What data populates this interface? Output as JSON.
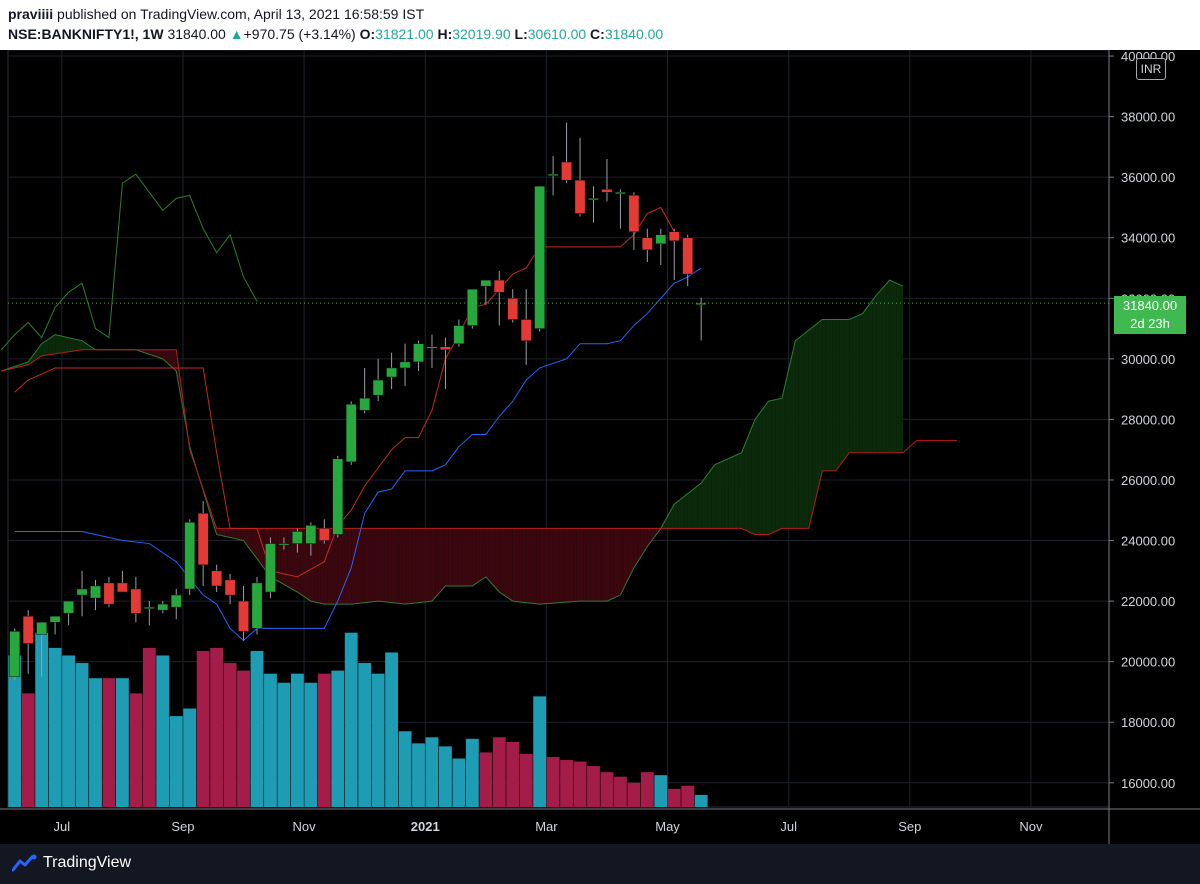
{
  "header": {
    "author": "praviiii",
    "published": "published on TradingView.com, April 13, 2021 16:58:59 IST",
    "symbol": "NSE:BANKNIFTY1!, 1W",
    "last": "31840.00",
    "change_arrow": "▲",
    "change": "+970.75 (+3.14%)",
    "o_label": "O:",
    "o": "31821.00",
    "h_label": "H:",
    "h": "32019.90",
    "l_label": "L:",
    "l": "30610.00",
    "c_label": "C:",
    "c": "31840.00"
  },
  "currency_badge": "INR",
  "last_price_tag": {
    "price": "31840.00",
    "countdown": "2d 23h"
  },
  "footer": {
    "brand": "TradingView",
    "logo_icon": "tradingview-logo-icon"
  },
  "colors": {
    "bull_candle": "#26a83d",
    "bear_candle": "#e53935",
    "bull_volume": "#1e9cb4",
    "bear_volume": "#a31d48",
    "tenkan": "#2962ff",
    "kijun": "#c62828",
    "chikou": "#2e7d32",
    "cloud_bull": "#0b2a0b",
    "cloud_bear": "#3a070f"
  },
  "chart_data": {
    "type": "candlestick",
    "interval": "1W",
    "y_axis": {
      "ticks": [
        "16000.00",
        "18000.00",
        "20000.00",
        "22000.00",
        "24000.00",
        "26000.00",
        "28000.00",
        "30000.00",
        "32000.00",
        "34000.00",
        "36000.00",
        "38000.00",
        "40000.00"
      ],
      "range": [
        15200,
        40200
      ]
    },
    "x_axis": {
      "labels": [
        {
          "t": "Jul",
          "i": 3.5
        },
        {
          "t": "Sep",
          "i": 12.5
        },
        {
          "t": "Nov",
          "i": 21.5
        },
        {
          "t": "2021",
          "i": 30.5
        },
        {
          "t": "Mar",
          "i": 39.5
        },
        {
          "t": "May",
          "i": 48.5
        },
        {
          "t": "Jul",
          "i": 57.5
        },
        {
          "t": "Sep",
          "i": 66.5
        },
        {
          "t": "Nov",
          "i": 75.5
        }
      ],
      "range": [
        -0.5,
        81.3
      ]
    },
    "candles": [
      [
        19500,
        21100,
        19400,
        21000
      ],
      [
        21500,
        21700,
        19600,
        20600
      ],
      [
        20900,
        21300,
        19500,
        21300
      ],
      [
        21300,
        21500,
        20900,
        21500
      ],
      [
        21600,
        22000,
        21200,
        22000
      ],
      [
        22200,
        23000,
        21500,
        22400
      ],
      [
        22100,
        22700,
        21700,
        22500
      ],
      [
        22600,
        22800,
        21800,
        21900
      ],
      [
        22600,
        23000,
        22300,
        22300
      ],
      [
        22400,
        22800,
        21300,
        21600
      ],
      [
        21800,
        22000,
        21200,
        21800
      ],
      [
        21700,
        22000,
        21600,
        21900
      ],
      [
        21800,
        22400,
        21400,
        22200
      ],
      [
        22400,
        24700,
        22200,
        24600
      ],
      [
        24900,
        25300,
        22500,
        23200
      ],
      [
        23000,
        23200,
        22300,
        22500
      ],
      [
        22700,
        22900,
        21900,
        22200
      ],
      [
        22000,
        22500,
        20700,
        21000
      ],
      [
        21100,
        22800,
        20900,
        22600
      ],
      [
        22300,
        24100,
        22100,
        23900
      ],
      [
        23900,
        24100,
        23700,
        23900
      ],
      [
        23900,
        24400,
        23600,
        24300
      ],
      [
        23900,
        24600,
        23500,
        24500
      ],
      [
        24400,
        24700,
        23900,
        24000
      ],
      [
        24200,
        26800,
        24100,
        26700
      ],
      [
        26600,
        28600,
        26500,
        28500
      ],
      [
        28300,
        29700,
        28200,
        28700
      ],
      [
        28800,
        30000,
        28600,
        29300
      ],
      [
        29400,
        30200,
        29000,
        29700
      ],
      [
        29700,
        30500,
        29100,
        29900
      ],
      [
        29900,
        30600,
        29600,
        30500
      ],
      [
        30400,
        30800,
        29700,
        30400
      ],
      [
        30400,
        30700,
        29000,
        30300
      ],
      [
        30500,
        31300,
        30400,
        31100
      ],
      [
        31100,
        32300,
        31000,
        32300
      ],
      [
        32400,
        32600,
        31800,
        32600
      ],
      [
        32600,
        32900,
        31100,
        32200
      ],
      [
        32000,
        32300,
        31200,
        31300
      ],
      [
        31300,
        32300,
        29800,
        30600
      ],
      [
        31000,
        35700,
        30900,
        35700
      ],
      [
        36100,
        36700,
        35400,
        36100
      ],
      [
        36500,
        37800,
        35800,
        35900
      ],
      [
        35900,
        37300,
        34700,
        34800
      ],
      [
        35300,
        35700,
        34500,
        35300
      ],
      [
        35600,
        36600,
        35200,
        35500
      ],
      [
        35500,
        35600,
        34300,
        35500
      ],
      [
        35400,
        35500,
        33600,
        34200
      ],
      [
        34000,
        34300,
        33200,
        33600
      ],
      [
        33800,
        34300,
        33100,
        34100
      ],
      [
        34200,
        34300,
        32600,
        33900
      ],
      [
        34000,
        34100,
        32400,
        32800
      ],
      [
        31821,
        32019.9,
        30610,
        31840
      ]
    ],
    "volume_scale": [
      0,
      1.3
    ],
    "volume": [
      1.0,
      0.75,
      1.15,
      1.05,
      1.0,
      0.95,
      0.85,
      0.85,
      0.85,
      0.75,
      1.05,
      1.0,
      0.6,
      0.65,
      1.03,
      1.05,
      0.95,
      0.9,
      1.03,
      0.88,
      0.82,
      0.88,
      0.82,
      0.88,
      0.9,
      1.15,
      0.95,
      0.88,
      1.02,
      0.5,
      0.42,
      0.46,
      0.4,
      0.32,
      0.45,
      0.36,
      0.46,
      0.43,
      0.35,
      0.73,
      0.33,
      0.31,
      0.3,
      0.27,
      0.23,
      0.2,
      0.16,
      0.23,
      0.21,
      0.12,
      0.14,
      0.08
    ],
    "volume_up": [
      true,
      false,
      true,
      true,
      true,
      true,
      true,
      false,
      true,
      false,
      false,
      true,
      true,
      true,
      false,
      false,
      false,
      false,
      true,
      true,
      true,
      true,
      true,
      false,
      true,
      true,
      true,
      true,
      true,
      true,
      true,
      true,
      true,
      true,
      true,
      false,
      false,
      false,
      false,
      true,
      false,
      false,
      false,
      false,
      false,
      false,
      false,
      false,
      true,
      false,
      false,
      true
    ],
    "tenkan_sen": [
      {
        "i": 0,
        "v": 24300
      },
      {
        "i": 5,
        "v": 24300
      },
      {
        "i": 8,
        "v": 24000
      },
      {
        "i": 10,
        "v": 23900
      },
      {
        "i": 12,
        "v": 23300
      },
      {
        "i": 14,
        "v": 22200
      },
      {
        "i": 15,
        "v": 21900
      },
      {
        "i": 16,
        "v": 21100
      },
      {
        "i": 17,
        "v": 20700
      },
      {
        "i": 18,
        "v": 21100
      },
      {
        "i": 21,
        "v": 21100
      },
      {
        "i": 23,
        "v": 21100
      },
      {
        "i": 24,
        "v": 22000
      },
      {
        "i": 25,
        "v": 23100
      },
      {
        "i": 26,
        "v": 24900
      },
      {
        "i": 27,
        "v": 25600
      },
      {
        "i": 28,
        "v": 25700
      },
      {
        "i": 29,
        "v": 26300
      },
      {
        "i": 31,
        "v": 26300
      },
      {
        "i": 32,
        "v": 26500
      },
      {
        "i": 33,
        "v": 27100
      },
      {
        "i": 34,
        "v": 27500
      },
      {
        "i": 35,
        "v": 27500
      },
      {
        "i": 36,
        "v": 28100
      },
      {
        "i": 37,
        "v": 28600
      },
      {
        "i": 38,
        "v": 29300
      },
      {
        "i": 39,
        "v": 29700
      },
      {
        "i": 41,
        "v": 30000
      },
      {
        "i": 42,
        "v": 30500
      },
      {
        "i": 43,
        "v": 30500
      },
      {
        "i": 44,
        "v": 30500
      },
      {
        "i": 45,
        "v": 30600
      },
      {
        "i": 46,
        "v": 31100
      },
      {
        "i": 47,
        "v": 31500
      },
      {
        "i": 48,
        "v": 32000
      },
      {
        "i": 49,
        "v": 32500
      },
      {
        "i": 50,
        "v": 32700
      },
      {
        "i": 51,
        "v": 33000
      }
    ],
    "kijun_sen": [
      {
        "i": 0,
        "v": 28900
      },
      {
        "i": 1,
        "v": 29300
      },
      {
        "i": 3,
        "v": 29700
      },
      {
        "i": 4,
        "v": 29700
      },
      {
        "i": 9,
        "v": 29700
      },
      {
        "i": 10,
        "v": 29700
      },
      {
        "i": 14,
        "v": 29700
      },
      {
        "i": 15,
        "v": 26900
      },
      {
        "i": 16,
        "v": 24400
      },
      {
        "i": 18,
        "v": 24400
      },
      {
        "i": 19,
        "v": 23000
      },
      {
        "i": 21,
        "v": 22800
      },
      {
        "i": 23,
        "v": 23300
      },
      {
        "i": 24,
        "v": 24500
      },
      {
        "i": 25,
        "v": 25000
      },
      {
        "i": 26,
        "v": 25800
      },
      {
        "i": 27,
        "v": 26400
      },
      {
        "i": 28,
        "v": 27000
      },
      {
        "i": 29,
        "v": 27400
      },
      {
        "i": 30,
        "v": 27400
      },
      {
        "i": 31,
        "v": 28300
      },
      {
        "i": 32,
        "v": 30000
      },
      {
        "i": 33,
        "v": 30800
      },
      {
        "i": 34,
        "v": 31700
      },
      {
        "i": 35,
        "v": 31800
      },
      {
        "i": 36,
        "v": 32300
      },
      {
        "i": 37,
        "v": 32800
      },
      {
        "i": 38,
        "v": 33000
      },
      {
        "i": 39,
        "v": 33700
      },
      {
        "i": 40,
        "v": 33700
      },
      {
        "i": 45,
        "v": 33700
      },
      {
        "i": 46,
        "v": 34100
      },
      {
        "i": 47,
        "v": 34800
      },
      {
        "i": 48,
        "v": 35000
      },
      {
        "i": 49,
        "v": 34200
      }
    ],
    "chikou_span": [
      {
        "i": -1,
        "v": 30300
      },
      {
        "i": 0,
        "v": 30800
      },
      {
        "i": 1,
        "v": 31200
      },
      {
        "i": 2,
        "v": 30700
      },
      {
        "i": 3,
        "v": 31700
      },
      {
        "i": 4,
        "v": 32200
      },
      {
        "i": 5,
        "v": 32500
      },
      {
        "i": 6,
        "v": 31000
      },
      {
        "i": 7,
        "v": 30700
      },
      {
        "i": 8,
        "v": 35800
      },
      {
        "i": 9,
        "v": 36100
      },
      {
        "i": 10,
        "v": 35500
      },
      {
        "i": 11,
        "v": 34900
      },
      {
        "i": 12,
        "v": 35300
      },
      {
        "i": 13,
        "v": 35400
      },
      {
        "i": 14,
        "v": 34300
      },
      {
        "i": 15,
        "v": 33500
      },
      {
        "i": 16,
        "v": 34100
      },
      {
        "i": 17,
        "v": 32700
      },
      {
        "i": 18,
        "v": 31900
      }
    ],
    "senkou_span_a": [
      {
        "i": -1,
        "v": 29600
      },
      {
        "i": 1,
        "v": 29900
      },
      {
        "i": 2,
        "v": 30500
      },
      {
        "i": 3,
        "v": 30800
      },
      {
        "i": 5,
        "v": 30600
      },
      {
        "i": 6,
        "v": 30300
      },
      {
        "i": 9,
        "v": 30300
      },
      {
        "i": 11,
        "v": 30000
      },
      {
        "i": 12,
        "v": 29600
      },
      {
        "i": 13,
        "v": 27100
      },
      {
        "i": 15,
        "v": 24200
      },
      {
        "i": 17,
        "v": 24000
      },
      {
        "i": 19,
        "v": 22800
      },
      {
        "i": 21,
        "v": 22300
      },
      {
        "i": 22,
        "v": 22000
      },
      {
        "i": 23,
        "v": 21900
      },
      {
        "i": 25,
        "v": 21900
      },
      {
        "i": 27,
        "v": 22000
      },
      {
        "i": 29,
        "v": 21900
      },
      {
        "i": 31,
        "v": 22000
      },
      {
        "i": 32,
        "v": 22500
      },
      {
        "i": 33,
        "v": 22500
      },
      {
        "i": 34,
        "v": 22500
      },
      {
        "i": 35,
        "v": 22800
      },
      {
        "i": 36,
        "v": 22300
      },
      {
        "i": 37,
        "v": 22000
      },
      {
        "i": 39,
        "v": 21900
      },
      {
        "i": 42,
        "v": 22000
      },
      {
        "i": 44,
        "v": 22000
      },
      {
        "i": 45,
        "v": 22200
      },
      {
        "i": 46,
        "v": 23100
      },
      {
        "i": 47,
        "v": 23800
      },
      {
        "i": 48,
        "v": 24400
      },
      {
        "i": 49,
        "v": 25200
      },
      {
        "i": 51,
        "v": 25900
      },
      {
        "i": 52,
        "v": 26500
      },
      {
        "i": 54,
        "v": 26900
      },
      {
        "i": 55,
        "v": 28000
      },
      {
        "i": 56,
        "v": 28600
      },
      {
        "i": 57,
        "v": 28700
      },
      {
        "i": 58,
        "v": 30600
      },
      {
        "i": 60,
        "v": 31300
      },
      {
        "i": 62,
        "v": 31300
      },
      {
        "i": 63,
        "v": 31500
      },
      {
        "i": 64,
        "v": 32100
      },
      {
        "i": 65,
        "v": 32600
      },
      {
        "i": 66,
        "v": 32400
      }
    ],
    "senkou_span_b": [
      {
        "i": -1,
        "v": 29600
      },
      {
        "i": 1,
        "v": 29800
      },
      {
        "i": 2,
        "v": 30100
      },
      {
        "i": 5,
        "v": 30300
      },
      {
        "i": 9,
        "v": 30300
      },
      {
        "i": 12,
        "v": 30300
      },
      {
        "i": 13,
        "v": 27000
      },
      {
        "i": 15,
        "v": 24400
      },
      {
        "i": 22,
        "v": 24400
      },
      {
        "i": 30,
        "v": 24400
      },
      {
        "i": 40,
        "v": 24400
      },
      {
        "i": 50,
        "v": 24400
      },
      {
        "i": 54,
        "v": 24400
      },
      {
        "i": 55,
        "v": 24200
      },
      {
        "i": 56,
        "v": 24200
      },
      {
        "i": 57,
        "v": 24400
      },
      {
        "i": 59,
        "v": 24400
      },
      {
        "i": 60,
        "v": 26300
      },
      {
        "i": 61,
        "v": 26300
      },
      {
        "i": 62,
        "v": 26900
      },
      {
        "i": 64,
        "v": 26900
      },
      {
        "i": 66,
        "v": 26900
      },
      {
        "i": 67,
        "v": 27300
      },
      {
        "i": 70,
        "v": 27300
      }
    ]
  }
}
